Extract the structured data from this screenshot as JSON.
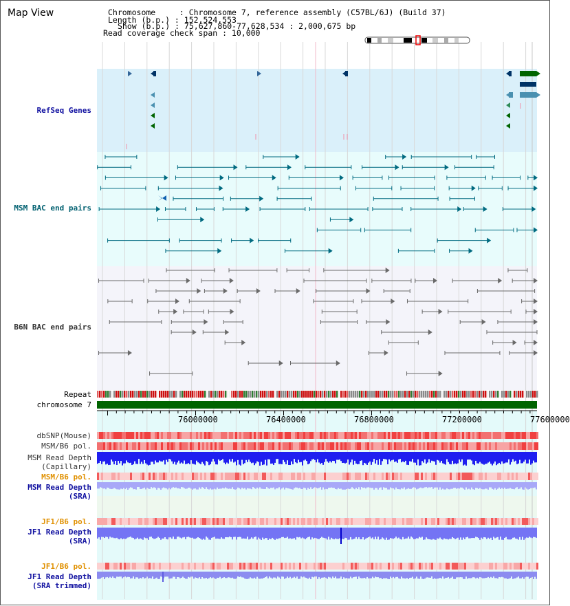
{
  "page": {
    "title": "Map View"
  },
  "header": {
    "chromosome_label": "Chromosome     : Chromosome 7, reference assembly (C57BL/6J) (Build 37)",
    "length_label": "Length (b.p.) : 152,524,553",
    "show_label": "Show (b.p.) : 75,627,860-77,628,534 : 2,000,675 bp",
    "coverage_label": "Read coverage check span : 10,000"
  },
  "tracks": {
    "refseq": "RefSeq Genes",
    "msm_bac": "MSM BAC end pairs",
    "b6n_bac": "B6N BAC end pairs",
    "repeat": "Repeat",
    "chromosome": "chromosome 7",
    "dbsnp": "dbSNP(Mouse)",
    "msm_b6_pol_1": "MSM/B6 pol.",
    "msm_read_depth_cap_1": "MSM Read Depth",
    "msm_read_depth_cap_2": "(Capillary)",
    "msm_b6_pol_2": "MSM/B6 pol.",
    "msm_read_depth_sra_1": "MSM Read Depth",
    "msm_read_depth_sra_2": "(SRA)",
    "jf1_b6_pol_1": "JF1/B6 pol.",
    "jf1_read_depth_sra_1": "JF1 Read Depth",
    "jf1_read_depth_sra_2": "(SRA)",
    "jf1_b6_pol_2": "JF1/B6 pol.",
    "jf1_read_depth_trim_1": "JF1 Read Depth",
    "jf1_read_depth_trim_2": "(SRA trimmed)"
  },
  "axis": {
    "ticks": [
      "76000000",
      "76400000",
      "76800000",
      "77200000",
      "77600000"
    ]
  },
  "colors": {
    "refseq_bg": "#daf0fa",
    "msm_bg": "#e8fcfc",
    "b6n_bg": "#f4f4fa",
    "dark_green": "#006400",
    "navy": "#003366",
    "teal": "#006a80",
    "gray": "#6a6a6a",
    "blue_depth": "#1f1ff0",
    "lavender_depth": "#7474f4"
  }
}
